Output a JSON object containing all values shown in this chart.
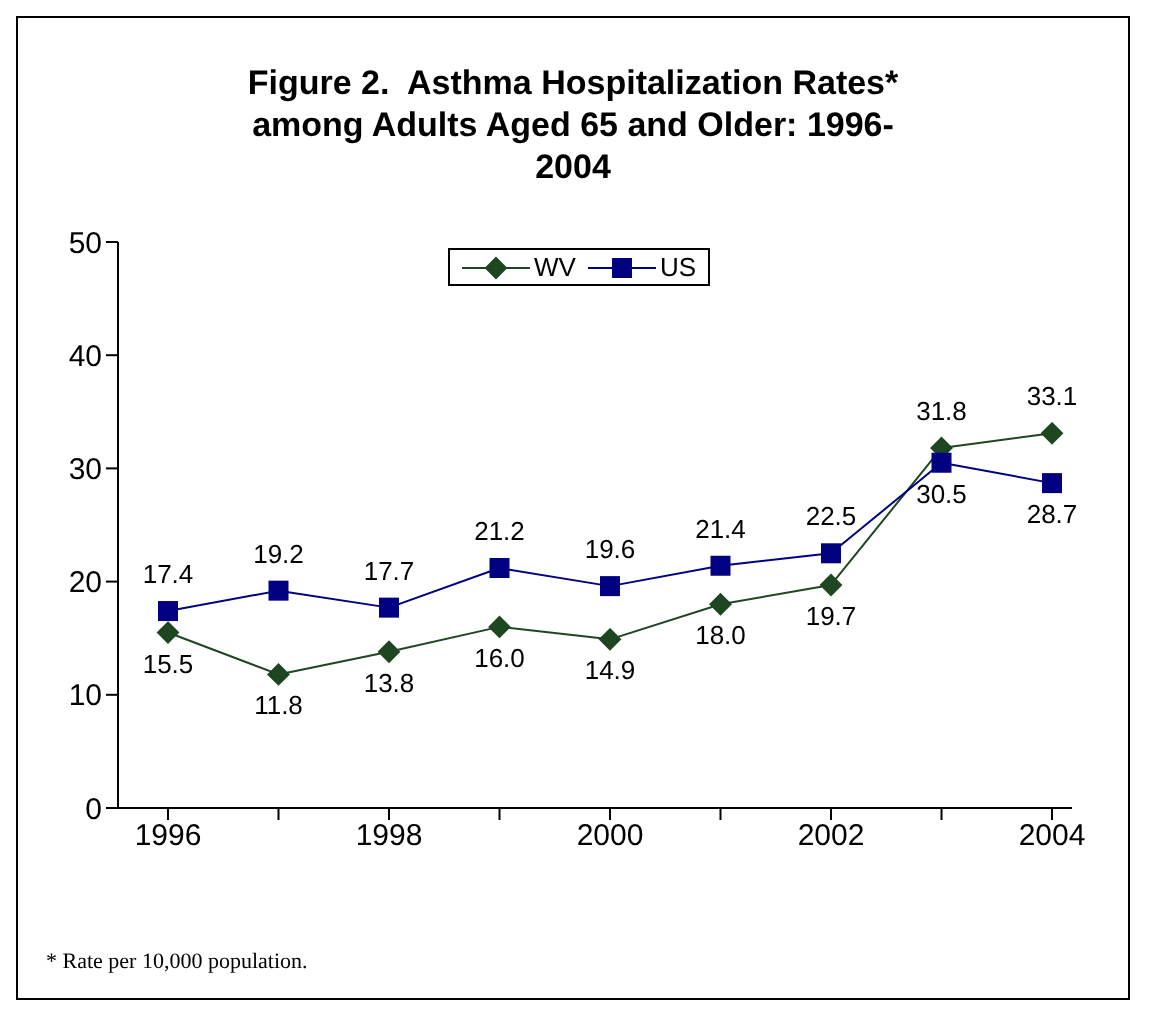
{
  "chart_data": {
    "type": "line",
    "title": "Figure 2.  Asthma Hospitalization Rates* among Adults Aged 65 and Older: 1996-2004",
    "categories": [
      "1996",
      null,
      "1998",
      null,
      "2000",
      null,
      "2002",
      null,
      "2004"
    ],
    "series": [
      {
        "name": "WV",
        "color": "#1e4620",
        "marker": "diamond",
        "values": [
          15.5,
          11.8,
          13.8,
          16.0,
          14.9,
          18.0,
          19.7,
          31.8,
          33.1
        ],
        "value_labels": [
          "15.5",
          "11.8",
          "13.8",
          "16.0",
          "14.9",
          "18.0",
          "19.7",
          "31.8",
          "33.1"
        ]
      },
      {
        "name": "US",
        "color": "#000080",
        "marker": "square",
        "values": [
          17.4,
          19.2,
          17.7,
          21.2,
          19.6,
          21.4,
          22.5,
          30.5,
          28.7
        ]
      }
    ],
    "ylim": [
      0,
      50
    ],
    "yticks": [
      0,
      10,
      20,
      30,
      40,
      50
    ],
    "grid": false,
    "legend": "top",
    "data_labels": true,
    "annotations": [
      "* Rate per 10,000 population."
    ]
  }
}
